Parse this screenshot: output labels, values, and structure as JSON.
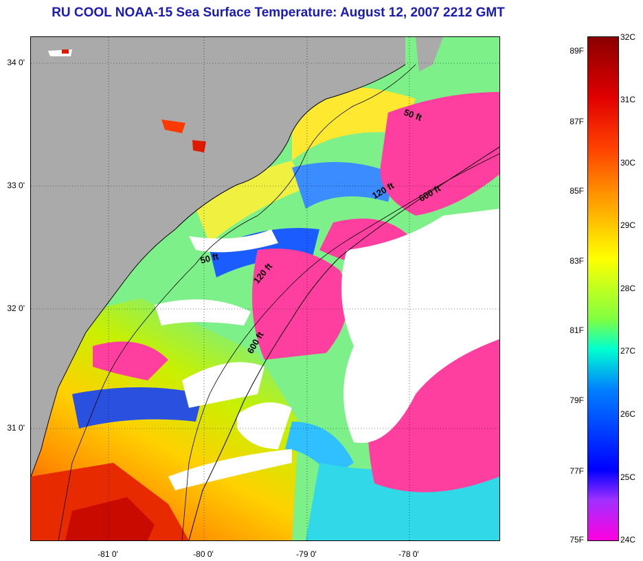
{
  "title": "RU COOL  NOAA-15  Sea Surface Temperature:  August 12, 2007 2212 GMT",
  "map": {
    "lat_labels": [
      "34 0'",
      "33 0'",
      "32 0'",
      "31 0'"
    ],
    "lon_labels": [
      "-81 0'",
      "-80 0'",
      "-79 0'",
      "-78 0'"
    ],
    "contour_labels": [
      "50 ft",
      "50 ft",
      "120 ft",
      "120 ft",
      "600 ft",
      "600 ft"
    ],
    "colors": {
      "land": "#aaaaaa",
      "cloud": "#ffffff",
      "cold": "#ff3fa0",
      "warm": "#e82000"
    }
  },
  "colorbar": {
    "fahrenheit_labels": [
      "89F",
      "87F",
      "85F",
      "83F",
      "81F",
      "79F",
      "77F",
      "75F"
    ],
    "celsius_labels": [
      "32C",
      "31C",
      "30C",
      "29C",
      "28C",
      "27C",
      "26C",
      "25C",
      "24C"
    ]
  }
}
